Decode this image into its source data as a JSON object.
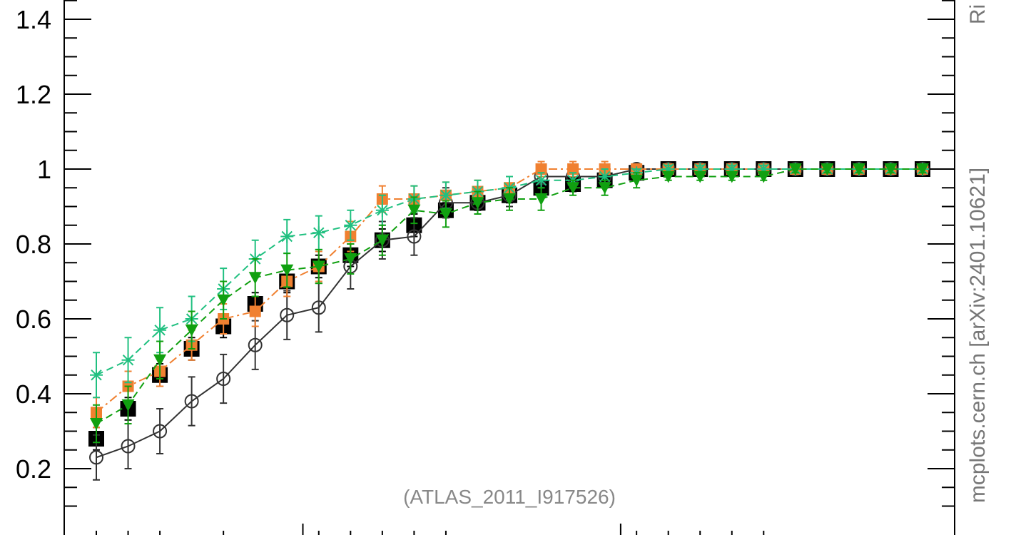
{
  "chart_data": {
    "type": "line",
    "x_bin_centers": [
      1,
      2,
      3,
      4,
      5,
      6,
      7,
      8,
      9,
      10,
      11,
      12,
      13,
      14,
      15,
      16,
      17,
      18,
      19,
      20,
      21,
      22,
      23,
      24,
      25,
      26,
      27
    ],
    "ylim": [
      0.1,
      1.45
    ],
    "y_ticks": [
      {
        "value": 0.2,
        "label": "0.2"
      },
      {
        "value": 0.4,
        "label": "0.4"
      },
      {
        "value": 0.6,
        "label": "0.6"
      },
      {
        "value": 0.8,
        "label": "0.8"
      },
      {
        "value": 1.0,
        "label": "1"
      },
      {
        "value": 1.2,
        "label": "1.2"
      },
      {
        "value": 1.4,
        "label": "1.4"
      }
    ],
    "y_minor_step": 0.05,
    "x_major_tick_positions": [
      0.5,
      7,
      17,
      27.5
    ],
    "x_minor_tick_positions": [
      1,
      2,
      3,
      5,
      8,
      9,
      10,
      11,
      12,
      18,
      19,
      20,
      21,
      22
    ],
    "watermark": "(ATLAS_2011_I917526)",
    "side_label": "mcplots.cern.ch [arXiv:2401.10621]",
    "side_label_top": "Ri",
    "series": [
      {
        "style": "data",
        "color": "#000000",
        "marker": "square-filled",
        "values": [
          0.28,
          0.36,
          0.45,
          0.52,
          0.58,
          0.64,
          0.7,
          0.74,
          0.77,
          0.81,
          0.85,
          0.89,
          0.91,
          0.93,
          0.95,
          0.96,
          0.97,
          0.99,
          1.0,
          1.0,
          1.0,
          1.0,
          1.0,
          1.0,
          1.0,
          1.0,
          1.0
        ],
        "errors": [
          0.03,
          0.03,
          0.03,
          0.03,
          0.03,
          0.03,
          0.03,
          0.03,
          0.03,
          0.03,
          0.03,
          0.02,
          0.02,
          0.02,
          0.02,
          0.02,
          0.02,
          0.01,
          0.01,
          0.01,
          0.01,
          0.01,
          0.01,
          0.01,
          0.01,
          0.01,
          0.01
        ]
      },
      {
        "style": "solid",
        "color": "#333333",
        "marker": "circle-open",
        "values": [
          0.23,
          0.26,
          0.3,
          0.38,
          0.44,
          0.53,
          0.61,
          0.63,
          0.74,
          0.81,
          0.82,
          0.91,
          0.91,
          0.93,
          0.98,
          0.98,
          0.98,
          1.0,
          1.0,
          1.0,
          1.0,
          1.0,
          1.0,
          1.0,
          1.0,
          1.0,
          1.0
        ],
        "errors": [
          0.06,
          0.06,
          0.06,
          0.065,
          0.065,
          0.065,
          0.065,
          0.065,
          0.06,
          0.05,
          0.05,
          0.04,
          0.03,
          0.03,
          0.02,
          0.02,
          0.02,
          0.01,
          0.01,
          0.01,
          0.01,
          0.01,
          0.01,
          0.01,
          0.01,
          0.01,
          0.01
        ]
      },
      {
        "style": "dashdot",
        "color": "#f08030",
        "marker": "square-filled-small",
        "values": [
          0.35,
          0.42,
          0.46,
          0.53,
          0.6,
          0.62,
          0.7,
          0.74,
          0.82,
          0.92,
          0.92,
          0.93,
          0.94,
          0.95,
          1.0,
          1.0,
          1.0,
          1.0,
          1.0,
          1.0,
          1.0,
          1.0,
          1.0,
          1.0,
          1.0,
          1.0,
          1.0
        ],
        "errors": [
          0.04,
          0.04,
          0.04,
          0.04,
          0.04,
          0.04,
          0.04,
          0.04,
          0.04,
          0.035,
          0.035,
          0.035,
          0.03,
          0.03,
          0.02,
          0.02,
          0.02,
          0.01,
          0.01,
          0.01,
          0.01,
          0.01,
          0.01,
          0.01,
          0.01,
          0.01,
          0.01
        ]
      },
      {
        "style": "dashed",
        "color": "#20c080",
        "marker": "asterisk",
        "values": [
          0.45,
          0.49,
          0.57,
          0.6,
          0.68,
          0.76,
          0.82,
          0.83,
          0.85,
          0.89,
          0.92,
          0.93,
          0.94,
          0.95,
          0.97,
          0.97,
          0.98,
          0.99,
          1.0,
          1.0,
          1.0,
          1.0,
          1.0,
          1.0,
          1.0,
          1.0,
          1.0
        ],
        "errors": [
          0.06,
          0.06,
          0.06,
          0.06,
          0.055,
          0.05,
          0.045,
          0.045,
          0.04,
          0.04,
          0.035,
          0.035,
          0.03,
          0.03,
          0.02,
          0.02,
          0.02,
          0.01,
          0.01,
          0.01,
          0.01,
          0.01,
          0.01,
          0.01,
          0.01,
          0.01,
          0.01
        ]
      },
      {
        "style": "dashed",
        "color": "#10a010",
        "marker": "triangle-down",
        "values": [
          0.32,
          0.37,
          0.49,
          0.57,
          0.65,
          0.71,
          0.73,
          0.74,
          0.76,
          0.81,
          0.89,
          0.88,
          0.91,
          0.92,
          0.92,
          0.95,
          0.95,
          0.97,
          0.98,
          0.98,
          0.98,
          0.98,
          1.0,
          1.0,
          1.0,
          1.0,
          1.0
        ],
        "errors": [
          0.05,
          0.05,
          0.05,
          0.05,
          0.05,
          0.05,
          0.045,
          0.045,
          0.04,
          0.04,
          0.035,
          0.035,
          0.03,
          0.03,
          0.03,
          0.02,
          0.02,
          0.02,
          0.01,
          0.01,
          0.01,
          0.01,
          0.01,
          0.01,
          0.01,
          0.01,
          0.01
        ]
      }
    ]
  }
}
